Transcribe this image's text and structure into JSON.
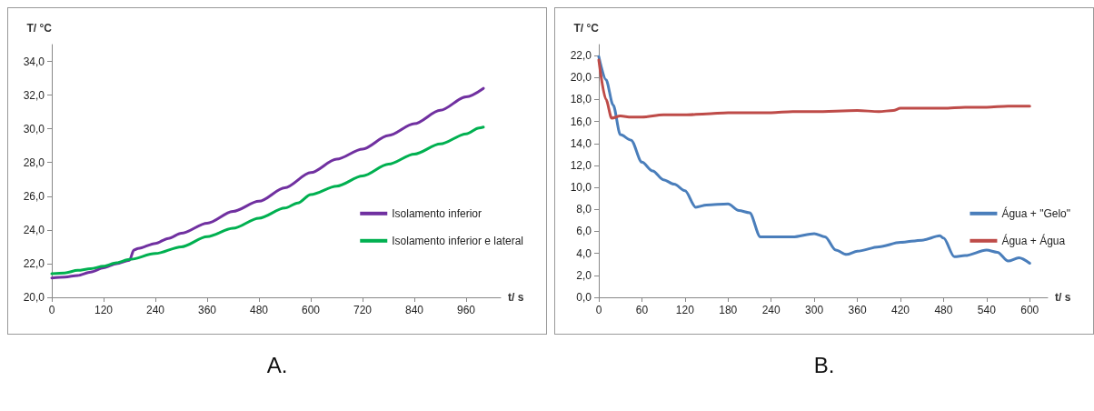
{
  "chart_data": [
    {
      "type": "line",
      "xlabel": "t/ s",
      "ylabel": "T/ °C",
      "annotations": [
        "A."
      ],
      "grid": false,
      "legend": "right",
      "marker": "none",
      "line_style": "solid",
      "xlim": [
        0,
        1040
      ],
      "xticks": [
        0,
        120,
        240,
        360,
        480,
        600,
        720,
        840,
        960
      ],
      "ylim": [
        20,
        35
      ],
      "yticks": [
        {
          "value": 20,
          "label": "20,0"
        },
        {
          "value": 22,
          "label": "22,0"
        },
        {
          "value": 24,
          "label": "24,0"
        },
        {
          "value": 26,
          "label": "26,0"
        },
        {
          "value": 28,
          "label": "28,0"
        },
        {
          "value": 30,
          "label": "30,0"
        },
        {
          "value": 32,
          "label": "32,0"
        },
        {
          "value": 34,
          "label": "34,0"
        }
      ],
      "series": [
        {
          "name": "Isolamento inferior",
          "color": "#7030a0",
          "x": [
            0,
            30,
            60,
            90,
            120,
            150,
            180,
            190,
            200,
            240,
            270,
            300,
            360,
            420,
            480,
            540,
            600,
            660,
            720,
            780,
            840,
            900,
            960,
            1000
          ],
          "values": [
            21.15,
            21.2,
            21.3,
            21.5,
            21.75,
            22.0,
            22.2,
            22.8,
            22.9,
            23.2,
            23.5,
            23.8,
            24.4,
            25.1,
            25.7,
            26.5,
            27.4,
            28.2,
            28.8,
            29.6,
            30.3,
            31.1,
            31.9,
            32.4
          ]
        },
        {
          "name": "Isolamento inferior e lateral",
          "color": "#00b050",
          "x": [
            0,
            30,
            60,
            90,
            120,
            150,
            180,
            240,
            300,
            360,
            420,
            480,
            540,
            570,
            600,
            660,
            720,
            780,
            840,
            900,
            960,
            990,
            1000
          ],
          "values": [
            21.4,
            21.45,
            21.6,
            21.7,
            21.85,
            22.05,
            22.25,
            22.6,
            23.0,
            23.6,
            24.1,
            24.7,
            25.3,
            25.6,
            26.1,
            26.6,
            27.2,
            27.9,
            28.5,
            29.1,
            29.7,
            30.05,
            30.1
          ]
        }
      ]
    },
    {
      "type": "line",
      "xlabel": "t/ s",
      "ylabel": "T/ °C",
      "annotations": [
        "B."
      ],
      "grid": false,
      "legend": "right",
      "marker": "none",
      "line_style": "solid",
      "xlim": [
        0,
        625
      ],
      "xticks": [
        0,
        60,
        120,
        180,
        240,
        300,
        360,
        420,
        480,
        540,
        600
      ],
      "ylim": [
        0,
        23
      ],
      "yticks": [
        {
          "value": 0,
          "label": "0,0"
        },
        {
          "value": 2,
          "label": "2,0"
        },
        {
          "value": 4,
          "label": "4,0"
        },
        {
          "value": 6,
          "label": "6,0"
        },
        {
          "value": 8,
          "label": "8,0"
        },
        {
          "value": 10,
          "label": "10,0"
        },
        {
          "value": 12,
          "label": "12,0"
        },
        {
          "value": 14,
          "label": "14,0"
        },
        {
          "value": 16,
          "label": "16,0"
        },
        {
          "value": 18,
          "label": "18,0"
        },
        {
          "value": 20,
          "label": "20,0"
        },
        {
          "value": 22,
          "label": "22,0"
        }
      ],
      "series": [
        {
          "name": "Água + \"Gelo\"",
          "color": "#4a7ebb",
          "x": [
            0,
            10,
            20,
            30,
            45,
            60,
            75,
            90,
            105,
            120,
            135,
            150,
            180,
            195,
            210,
            225,
            240,
            270,
            300,
            315,
            330,
            345,
            360,
            390,
            420,
            450,
            475,
            480,
            495,
            510,
            540,
            555,
            570,
            585,
            600
          ],
          "values": [
            21.9,
            19.8,
            17.5,
            14.8,
            14.3,
            12.3,
            11.5,
            10.7,
            10.3,
            9.7,
            8.2,
            8.4,
            8.5,
            7.9,
            7.7,
            5.5,
            5.5,
            5.5,
            5.8,
            5.5,
            4.3,
            3.9,
            4.2,
            4.6,
            5.0,
            5.2,
            5.6,
            5.4,
            3.7,
            3.8,
            4.3,
            4.1,
            3.3,
            3.6,
            3.1
          ]
        },
        {
          "name": "Água + Água",
          "color": "#be4b48",
          "x": [
            0,
            10,
            18,
            30,
            45,
            60,
            90,
            120,
            150,
            180,
            240,
            270,
            300,
            360,
            390,
            410,
            420,
            480,
            510,
            540,
            570,
            600
          ],
          "values": [
            21.6,
            18.0,
            16.3,
            16.5,
            16.4,
            16.4,
            16.6,
            16.6,
            16.7,
            16.8,
            16.8,
            16.9,
            16.9,
            17.0,
            16.9,
            17.0,
            17.2,
            17.2,
            17.3,
            17.3,
            17.4,
            17.4
          ]
        }
      ]
    }
  ]
}
